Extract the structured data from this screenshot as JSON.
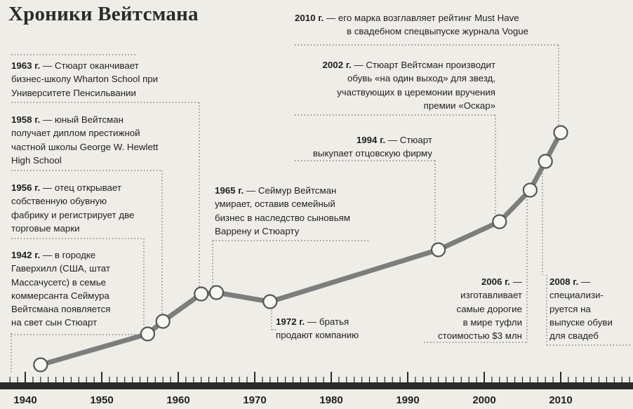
{
  "title": "Хроники Вейтсмана",
  "timeline": {
    "years": [
      "1940",
      "1950",
      "1960",
      "1970",
      "1980",
      "1990",
      "2000",
      "2010"
    ],
    "points": [
      1942,
      1956,
      1958,
      1963,
      1965,
      1972,
      1994,
      2002,
      2006,
      2008,
      2010
    ]
  },
  "events": [
    {
      "year": "1942 г.",
      "lines": [
        " — в городке",
        "Гаверхилл (США, штат",
        "Массачусетс) в семье",
        "коммерсанта Сеймура",
        "Вейтсмана появляется",
        "на свет сын Стюарт"
      ]
    },
    {
      "year": "1956 г.",
      "lines": [
        " — отец открывает",
        "собственную обувную",
        "фабрику и регистрирует две",
        "торговые марки"
      ]
    },
    {
      "year": "1958 г.",
      "lines": [
        " — юный Вейтсман",
        "получает диплом престижной",
        "частной школы George W. Hewlett",
        "High School"
      ]
    },
    {
      "year": "1963 г.",
      "lines": [
        " — Стюарт оканчивает",
        "бизнес-школу Wharton School при",
        "Университете Пенсильвании"
      ]
    },
    {
      "year": "1965 г.",
      "lines": [
        " — Сеймур Вейтсман",
        "умирает, оставив семейный",
        "бизнес в наследство сыновьям",
        "Варрену и Стюарту"
      ]
    },
    {
      "year": "1972 г.",
      "lines": [
        " — братья",
        "продают компанию"
      ]
    },
    {
      "year": "1994 г.",
      "lines": [
        " — Стюарт",
        "выкупает отцовскую фирму"
      ]
    },
    {
      "year": "2002 г.",
      "lines": [
        " — Стюарт Вейтсман производит",
        "обувь «на один выход» для звезд,",
        "участвующих в церемонии вручения",
        "премии «Оскар»"
      ]
    },
    {
      "year": "2006 г.",
      "lines": [
        " —",
        "изготавливает",
        "самые дорогие",
        "в мире туфли",
        "стоимостью $3 млн"
      ]
    },
    {
      "year": "2008 г.",
      "lines": [
        " —",
        "специализи-",
        "руется на",
        "выпуске обуви",
        "для свадеб"
      ]
    },
    {
      "year": "2010 г.",
      "lines": [
        " — его марка возглавляет рейтинг Must Have",
        "в свадебном спецвыпуске журнала Vogue"
      ]
    }
  ]
}
